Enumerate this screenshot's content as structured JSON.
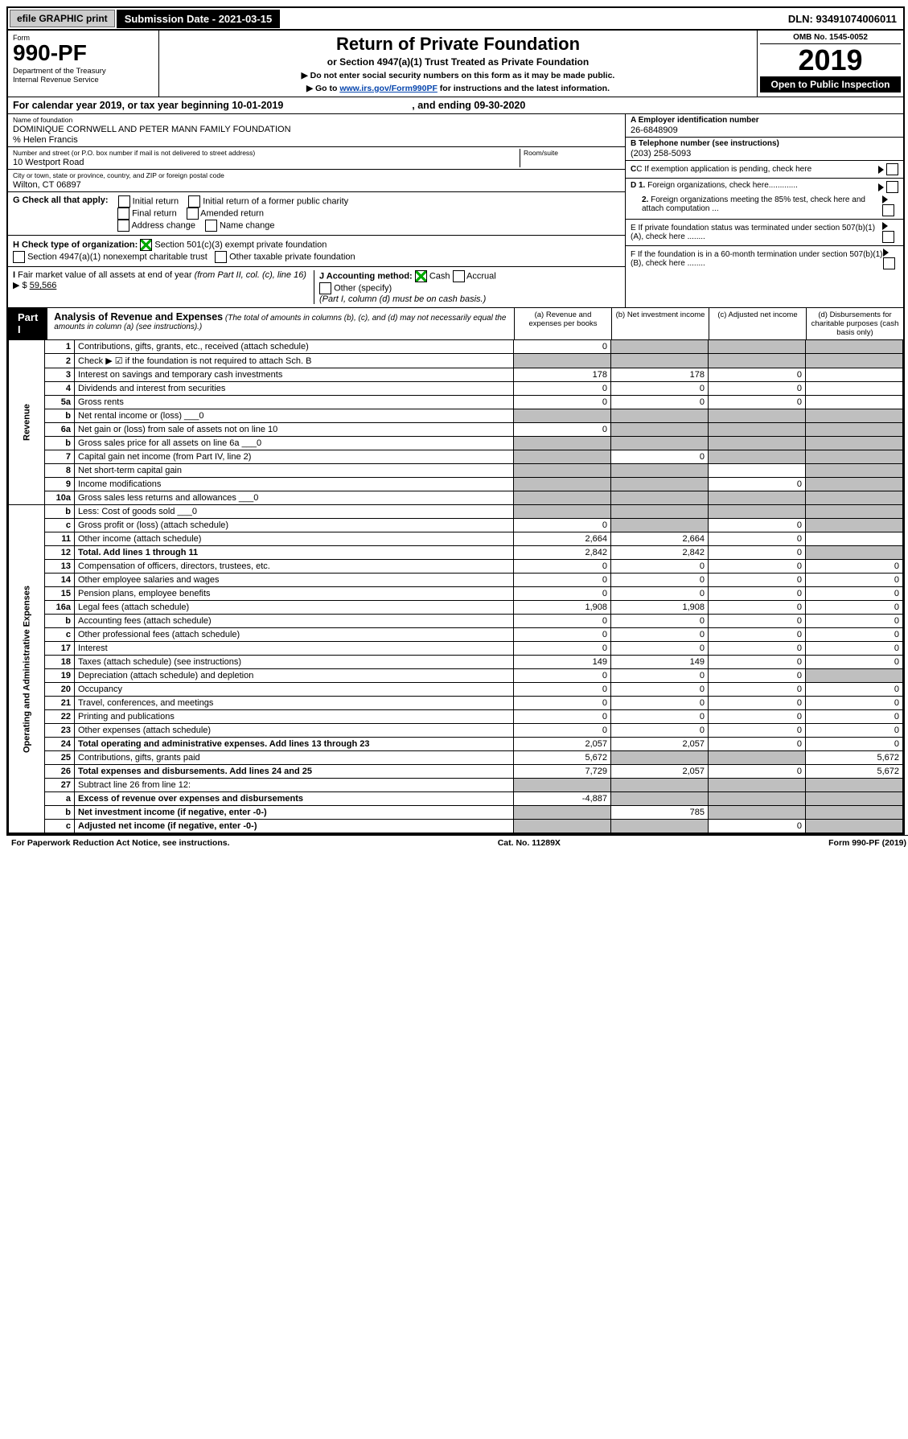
{
  "top": {
    "efile": "efile GRAPHIC print",
    "submission": "Submission Date - 2021-03-15",
    "dln": "DLN: 93491074006011"
  },
  "header": {
    "form": "Form",
    "num": "990-PF",
    "dept": "Department of the Treasury\nInternal Revenue Service",
    "title": "Return of Private Foundation",
    "subtitle": "or Section 4947(a)(1) Trust Treated as Private Foundation",
    "instr1": "▶ Do not enter social security numbers on this form as it may be made public.",
    "instr2_pre": "▶ Go to ",
    "instr2_link": "www.irs.gov/Form990PF",
    "instr2_post": " for instructions and the latest information.",
    "omb": "OMB No. 1545-0052",
    "year": "2019",
    "open": "Open to Public Inspection"
  },
  "cal": {
    "pre": "For calendar year 2019, or tax year beginning 10-01-2019",
    "end": ", and ending 09-30-2020"
  },
  "name": {
    "label": "Name of foundation",
    "val": "DOMINIQUE CORNWELL AND PETER MANN FAMILY FOUNDATION",
    "care": "% Helen Francis"
  },
  "addr": {
    "label": "Number and street (or P.O. box number if mail is not delivered to street address)",
    "val": "10 Westport Road",
    "room_label": "Room/suite"
  },
  "city": {
    "label": "City or town, state or province, country, and ZIP or foreign postal code",
    "val": "Wilton, CT  06897"
  },
  "ein": {
    "label": "A Employer identification number",
    "val": "26-6848909"
  },
  "phone": {
    "label": "B Telephone number (see instructions)",
    "val": "(203) 258-5093"
  },
  "c": "C  If exemption application is pending, check here",
  "d1": "D 1. Foreign organizations, check here.............",
  "d2": "2. Foreign organizations meeting the 85% test, check here and attach computation ...",
  "e": "E  If private foundation status was terminated under section 507(b)(1)(A), check here ........",
  "f": "F  If the foundation is in a 60-month termination under section 507(b)(1)(B), check here ........",
  "g": {
    "label": "G Check all that apply:",
    "opts": [
      "Initial return",
      "Final return",
      "Address change",
      "Initial return of a former public charity",
      "Amended return",
      "Name change"
    ]
  },
  "h": {
    "label": "H Check type of organization:",
    "o1": "Section 501(c)(3) exempt private foundation",
    "o2": "Section 4947(a)(1) nonexempt charitable trust",
    "o3": "Other taxable private foundation"
  },
  "i": {
    "label": "I Fair market value of all assets at end of year (from Part II, col. (c), line 16) ▶ $",
    "val": "59,566"
  },
  "j": {
    "label": "J Accounting method:",
    "cash": "Cash",
    "accrual": "Accrual",
    "other": "Other (specify)",
    "note": "(Part I, column (d) must be on cash basis.)"
  },
  "part1": {
    "tag": "Part I",
    "title": "Analysis of Revenue and Expenses",
    "note": "(The total of amounts in columns (b), (c), and (d) may not necessarily equal the amounts in column (a) (see instructions).)",
    "cols": [
      "(a)   Revenue and expenses per books",
      "(b)  Net investment income",
      "(c)  Adjusted net income",
      "(d)  Disbursements for charitable purposes (cash basis only)"
    ]
  },
  "rows": [
    {
      "n": "1",
      "d": "Contributions, gifts, grants, etc., received (attach schedule)",
      "a": "0",
      "grey": [
        "b",
        "c",
        "d"
      ]
    },
    {
      "n": "2",
      "d": "Check ▶ ☑ if the foundation is not required to attach Sch. B",
      "grey": [
        "a",
        "b",
        "c",
        "d"
      ]
    },
    {
      "n": "3",
      "d": "Interest on savings and temporary cash investments",
      "a": "178",
      "b": "178",
      "c": "0"
    },
    {
      "n": "4",
      "d": "Dividends and interest from securities",
      "a": "0",
      "b": "0",
      "c": "0"
    },
    {
      "n": "5a",
      "d": "Gross rents",
      "a": "0",
      "b": "0",
      "c": "0"
    },
    {
      "n": "b",
      "d": "Net rental income or (loss)",
      "inline": "0",
      "grey": [
        "a",
        "b",
        "c",
        "d"
      ]
    },
    {
      "n": "6a",
      "d": "Net gain or (loss) from sale of assets not on line 10",
      "a": "0",
      "grey": [
        "b",
        "c",
        "d"
      ]
    },
    {
      "n": "b",
      "d": "Gross sales price for all assets on line 6a",
      "inline": "0",
      "grey": [
        "a",
        "b",
        "c",
        "d"
      ]
    },
    {
      "n": "7",
      "d": "Capital gain net income (from Part IV, line 2)",
      "b": "0",
      "grey": [
        "a",
        "c",
        "d"
      ]
    },
    {
      "n": "8",
      "d": "Net short-term capital gain",
      "grey": [
        "a",
        "b",
        "d"
      ]
    },
    {
      "n": "9",
      "d": "Income modifications",
      "c": "0",
      "grey": [
        "a",
        "b",
        "d"
      ]
    },
    {
      "n": "10a",
      "d": "Gross sales less returns and allowances",
      "inline": "0",
      "grey": [
        "a",
        "b",
        "c",
        "d"
      ]
    },
    {
      "n": "b",
      "d": "Less: Cost of goods sold",
      "inline": "0",
      "grey": [
        "a",
        "b",
        "c",
        "d"
      ]
    },
    {
      "n": "c",
      "d": "Gross profit or (loss) (attach schedule)",
      "a": "0",
      "c": "0",
      "grey": [
        "b",
        "d"
      ]
    },
    {
      "n": "11",
      "d": "Other income (attach schedule)",
      "a": "2,664",
      "b": "2,664",
      "c": "0"
    },
    {
      "n": "12",
      "d": "Total. Add lines 1 through 11",
      "bold": true,
      "a": "2,842",
      "b": "2,842",
      "c": "0",
      "grey": [
        "d"
      ]
    },
    {
      "n": "13",
      "d": "Compensation of officers, directors, trustees, etc.",
      "a": "0",
      "b": "0",
      "c": "0",
      "dd": "0"
    },
    {
      "n": "14",
      "d": "Other employee salaries and wages",
      "a": "0",
      "b": "0",
      "c": "0",
      "dd": "0"
    },
    {
      "n": "15",
      "d": "Pension plans, employee benefits",
      "a": "0",
      "b": "0",
      "c": "0",
      "dd": "0"
    },
    {
      "n": "16a",
      "d": "Legal fees (attach schedule)",
      "a": "1,908",
      "b": "1,908",
      "c": "0",
      "dd": "0"
    },
    {
      "n": "b",
      "d": "Accounting fees (attach schedule)",
      "a": "0",
      "b": "0",
      "c": "0",
      "dd": "0"
    },
    {
      "n": "c",
      "d": "Other professional fees (attach schedule)",
      "a": "0",
      "b": "0",
      "c": "0",
      "dd": "0"
    },
    {
      "n": "17",
      "d": "Interest",
      "a": "0",
      "b": "0",
      "c": "0",
      "dd": "0"
    },
    {
      "n": "18",
      "d": "Taxes (attach schedule) (see instructions)",
      "a": "149",
      "b": "149",
      "c": "0",
      "dd": "0"
    },
    {
      "n": "19",
      "d": "Depreciation (attach schedule) and depletion",
      "a": "0",
      "b": "0",
      "c": "0",
      "grey": [
        "d"
      ]
    },
    {
      "n": "20",
      "d": "Occupancy",
      "a": "0",
      "b": "0",
      "c": "0",
      "dd": "0"
    },
    {
      "n": "21",
      "d": "Travel, conferences, and meetings",
      "a": "0",
      "b": "0",
      "c": "0",
      "dd": "0"
    },
    {
      "n": "22",
      "d": "Printing and publications",
      "a": "0",
      "b": "0",
      "c": "0",
      "dd": "0"
    },
    {
      "n": "23",
      "d": "Other expenses (attach schedule)",
      "a": "0",
      "b": "0",
      "c": "0",
      "dd": "0"
    },
    {
      "n": "24",
      "d": "Total operating and administrative expenses. Add lines 13 through 23",
      "bold": true,
      "a": "2,057",
      "b": "2,057",
      "c": "0",
      "dd": "0"
    },
    {
      "n": "25",
      "d": "Contributions, gifts, grants paid",
      "a": "5,672",
      "dd": "5,672",
      "grey": [
        "b",
        "c"
      ]
    },
    {
      "n": "26",
      "d": "Total expenses and disbursements. Add lines 24 and 25",
      "bold": true,
      "a": "7,729",
      "b": "2,057",
      "c": "0",
      "dd": "5,672"
    },
    {
      "n": "27",
      "d": "Subtract line 26 from line 12:",
      "grey": [
        "a",
        "b",
        "c",
        "d"
      ]
    },
    {
      "n": "a",
      "d": "Excess of revenue over expenses and disbursements",
      "bold": true,
      "a": "-4,887",
      "grey": [
        "b",
        "c",
        "d"
      ]
    },
    {
      "n": "b",
      "d": "Net investment income (if negative, enter -0-)",
      "bold": true,
      "b": "785",
      "grey": [
        "a",
        "c",
        "d"
      ]
    },
    {
      "n": "c",
      "d": "Adjusted net income (if negative, enter -0-)",
      "bold": true,
      "c": "0",
      "grey": [
        "a",
        "b",
        "d"
      ]
    }
  ],
  "vlabels": {
    "rev": "Revenue",
    "exp": "Operating and Administrative Expenses"
  },
  "footer": {
    "l": "For Paperwork Reduction Act Notice, see instructions.",
    "m": "Cat. No. 11289X",
    "r": "Form 990-PF (2019)"
  }
}
